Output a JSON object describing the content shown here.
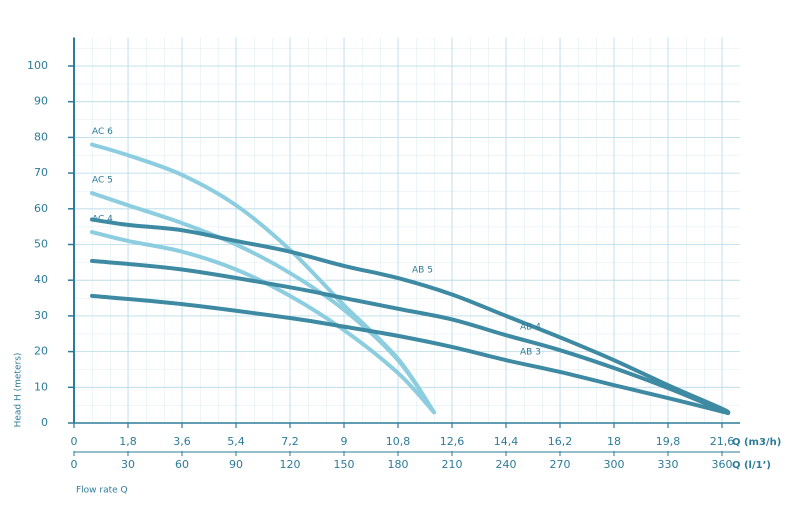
{
  "chart_data": {
    "type": "line",
    "x_label": "Q (m3/h)",
    "x2_label": "Q (l/1’)",
    "y_label": "Head H (meters)",
    "note": "Flow rate Q",
    "xlim": [
      0,
      22.2
    ],
    "x2lim": [
      0,
      370
    ],
    "ylim": [
      0,
      108
    ],
    "xticks": [
      0,
      {
        "value": 1.8,
        "label": "1,8"
      },
      {
        "value": 3.6,
        "label": "3,6"
      },
      {
        "value": 5.4,
        "label": "5,4"
      },
      {
        "value": 7.2,
        "label": "7,2"
      },
      9,
      {
        "value": 10.8,
        "label": "10,8"
      },
      {
        "value": 12.6,
        "label": "12,6"
      },
      {
        "value": 14.4,
        "label": "14,4"
      },
      {
        "value": 16.2,
        "label": "16,2"
      },
      18,
      {
        "value": 19.8,
        "label": "19,8"
      },
      {
        "value": 21.6,
        "label": "21,6"
      }
    ],
    "x2ticks": [
      0,
      30,
      60,
      90,
      120,
      150,
      180,
      210,
      240,
      270,
      300,
      330,
      360
    ],
    "yticks": [
      0,
      10,
      20,
      30,
      40,
      50,
      60,
      70,
      80,
      90,
      100
    ],
    "grid": true,
    "series": [
      {
        "name": "AC 6",
        "color": "#8dcde0",
        "x": [
          0.6,
          1.8,
          3.6,
          5.4,
          7.2,
          9,
          10.8,
          12
        ],
        "values": [
          78,
          75,
          69.5,
          61,
          48.5,
          33,
          18,
          3
        ]
      },
      {
        "name": "AC 5",
        "color": "#8dcde0",
        "x": [
          0.6,
          1.8,
          3.6,
          5.4,
          7.2,
          9,
          10.8,
          12
        ],
        "values": [
          64.4,
          61,
          56,
          50,
          42,
          31.7,
          17.6,
          3
        ]
      },
      {
        "name": "AC 4",
        "color": "#8dcde0",
        "x": [
          0.6,
          1.8,
          3.6,
          5.4,
          7.2,
          9,
          10.8,
          12
        ],
        "values": [
          53.5,
          51,
          48,
          43,
          35.6,
          26,
          14,
          3
        ]
      },
      {
        "name": "AB 5",
        "color": "#3f8aa3",
        "x": [
          0.6,
          1.8,
          3.6,
          5.4,
          7.2,
          9,
          10.8,
          12.6,
          14.4,
          16.2,
          18,
          19.8,
          21.6,
          21.8
        ],
        "values": [
          57,
          55.5,
          54,
          51,
          48,
          44,
          40.6,
          36,
          30,
          24,
          17.6,
          10.6,
          4,
          2.8
        ]
      },
      {
        "name": "AB 4",
        "color": "#3f8aa3",
        "x": [
          0.6,
          3.6,
          7.2,
          9,
          10.8,
          12.6,
          14.4,
          16.2,
          18,
          19.8,
          21.8
        ],
        "values": [
          45.4,
          43,
          38,
          35,
          32,
          29,
          24.6,
          20.4,
          15.4,
          9.8,
          2.8
        ]
      },
      {
        "name": "AB 3",
        "color": "#3f8aa3",
        "x": [
          0.6,
          3.6,
          7.2,
          9,
          10.8,
          12.6,
          14.4,
          16.2,
          18,
          19.8,
          21.8
        ],
        "values": [
          35.6,
          33.3,
          29.4,
          27,
          24.4,
          21.3,
          17.6,
          14.3,
          10.6,
          7,
          2.8
        ]
      }
    ]
  }
}
